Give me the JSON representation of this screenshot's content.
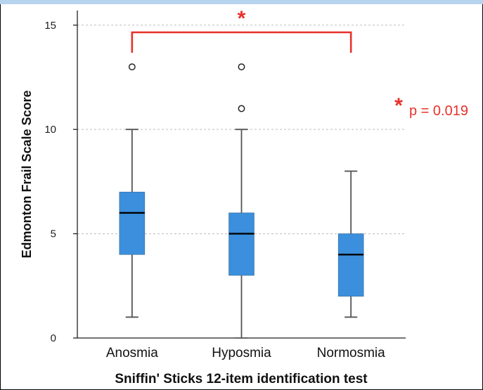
{
  "chart_data": {
    "type": "box",
    "xlabel": "Sniffin' Sticks 12-item identification test",
    "ylabel": "Edmonton Frail Scale Score",
    "ylim": [
      0,
      15.7
    ],
    "yticks": [
      0,
      5,
      10,
      15
    ],
    "grid": true,
    "categories": [
      "Anosmia",
      "Hyposmia",
      "Normosmia"
    ],
    "boxes": [
      {
        "category": "Anosmia",
        "whisker_low": 1,
        "q1": 4,
        "median": 6,
        "q3": 7,
        "whisker_high": 10,
        "outliers": [
          13
        ]
      },
      {
        "category": "Hyposmia",
        "whisker_low": 0,
        "q1": 3,
        "median": 5,
        "q3": 6,
        "whisker_high": 10,
        "outliers": [
          11,
          13
        ]
      },
      {
        "category": "Normosmia",
        "whisker_low": 1,
        "q1": 2,
        "median": 4,
        "q3": 5,
        "whisker_high": 8,
        "outliers": []
      }
    ],
    "significance": {
      "from": "Anosmia",
      "to": "Normosmia",
      "marker": "*",
      "note_marker": "*",
      "note_text": "p = 0.019"
    },
    "colors": {
      "box_fill": "#3b8fdc",
      "significance": "#e8312a"
    }
  }
}
